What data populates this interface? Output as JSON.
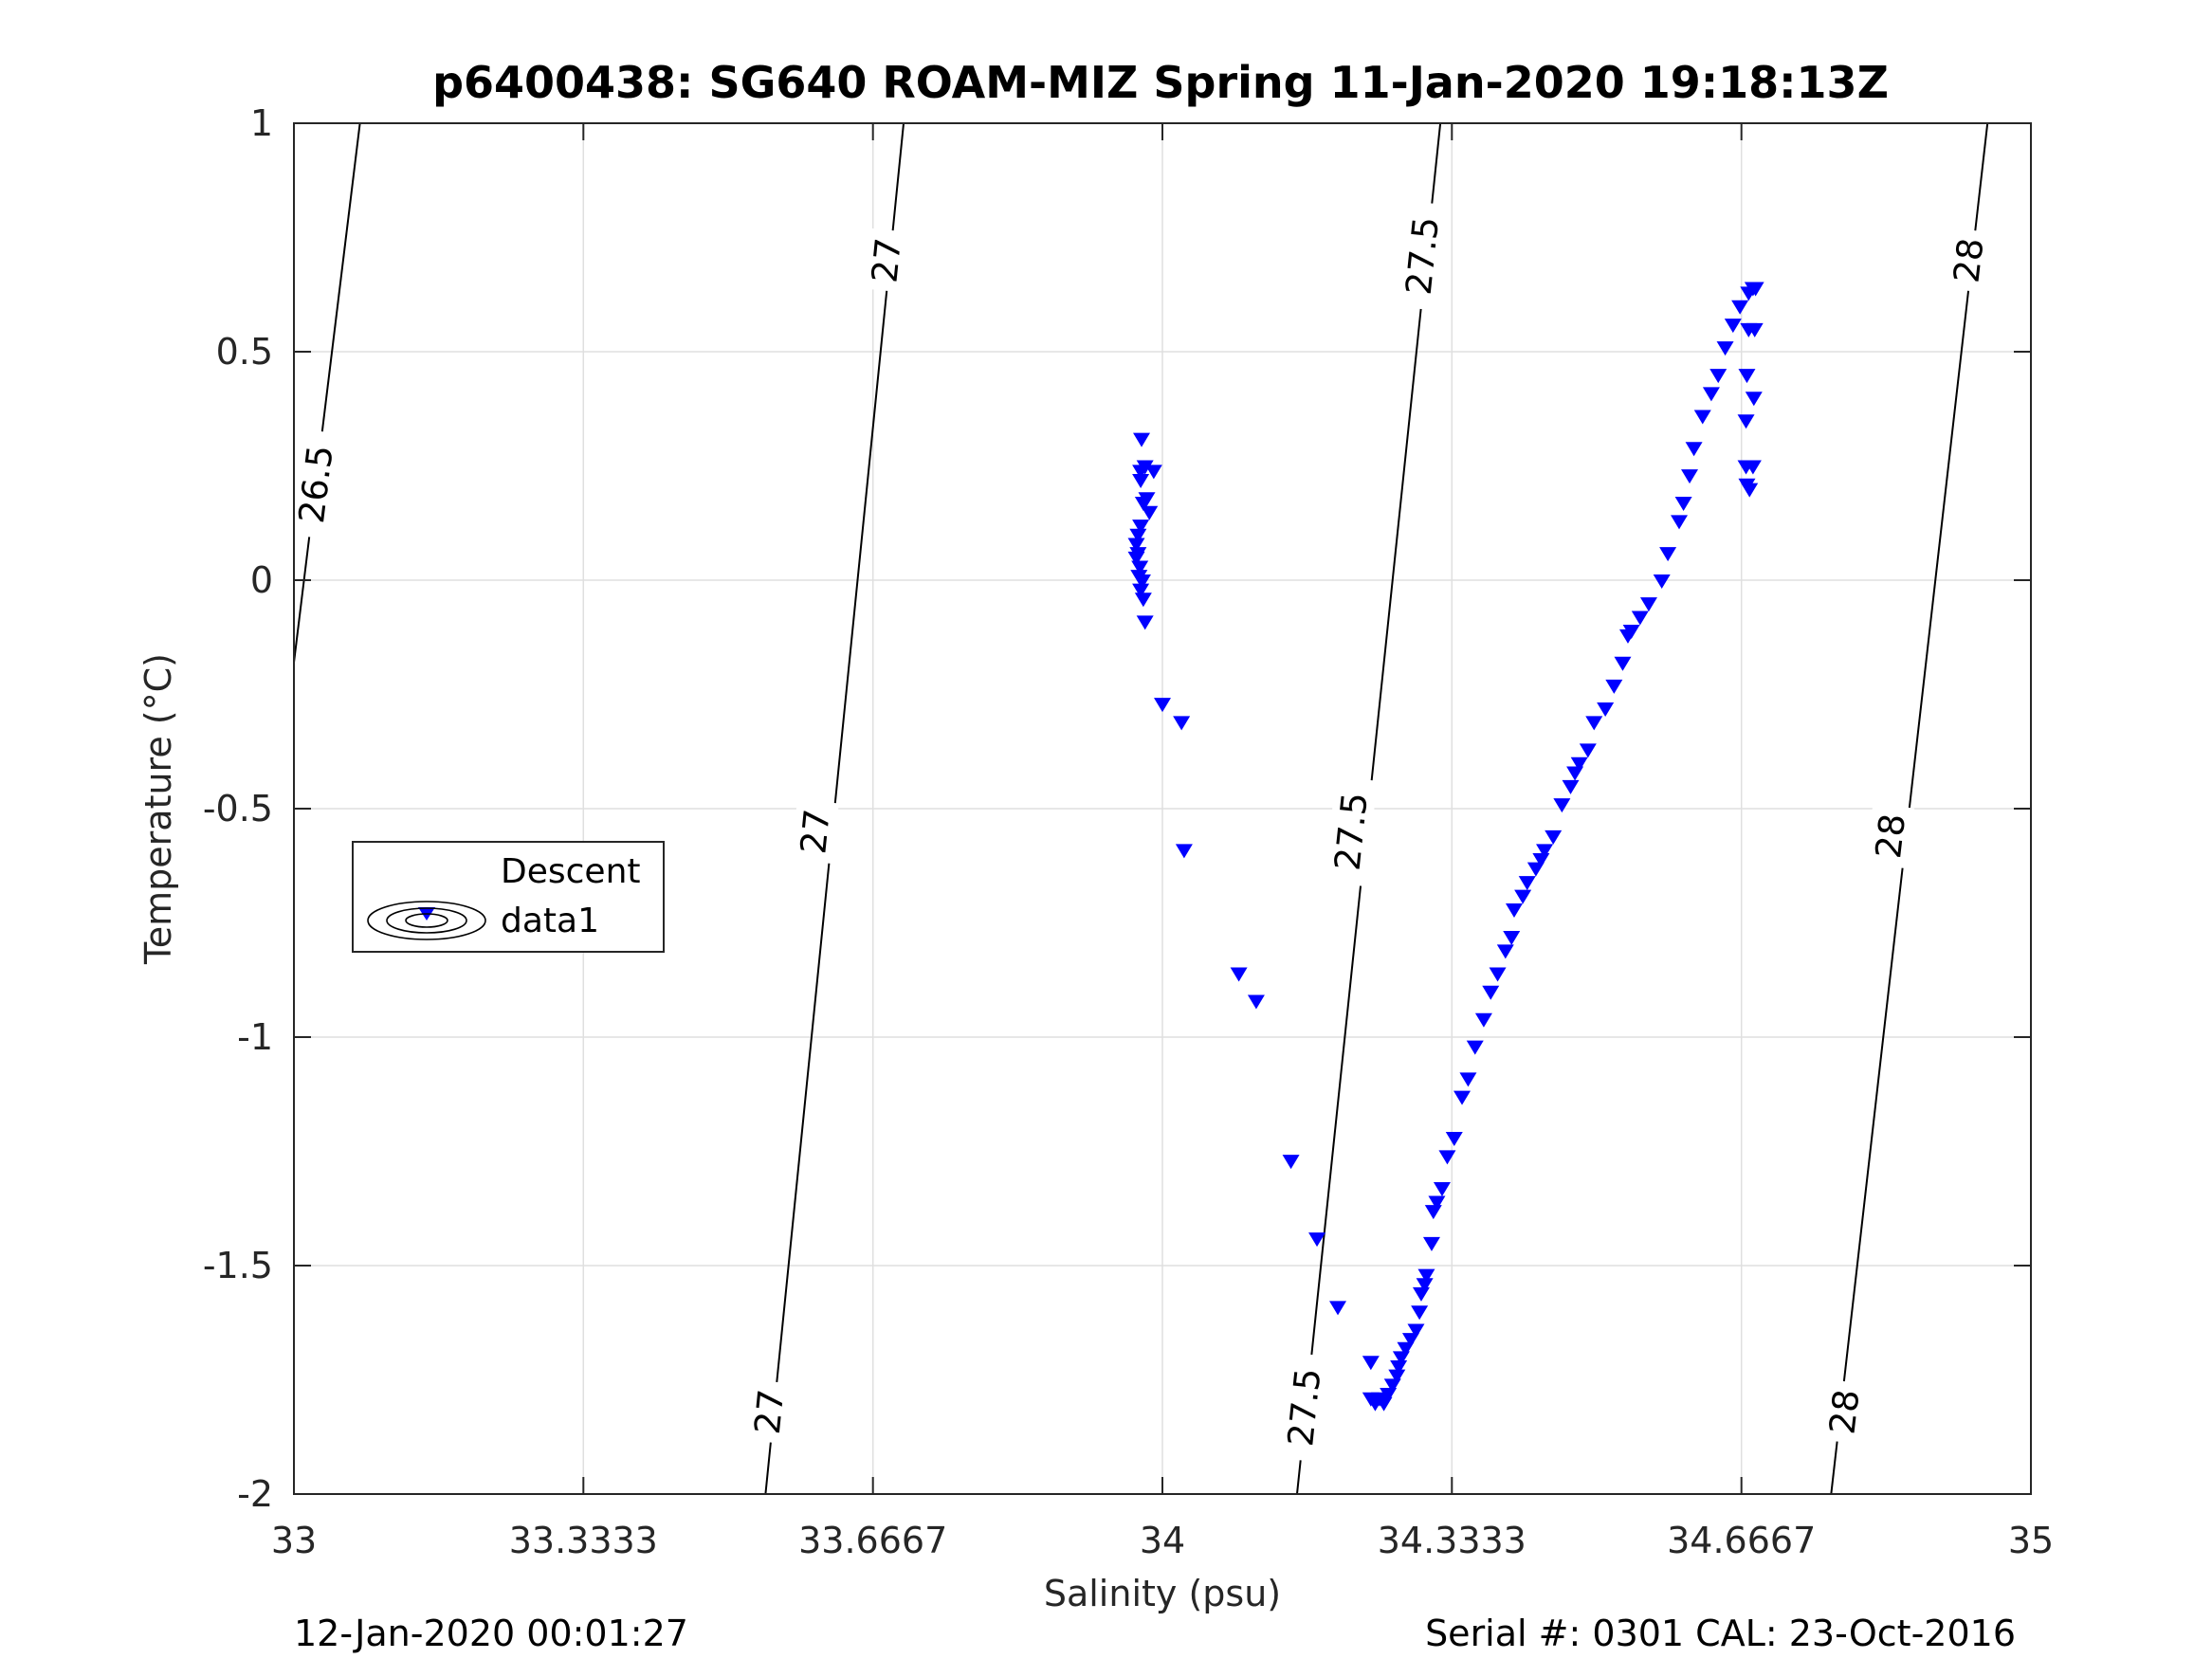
{
  "chart_data": {
    "type": "scatter",
    "title": "p6400438: SG640 ROAM-MIZ Spring 11-Jan-2020 19:18:13Z",
    "xlabel": "Salinity (psu)",
    "ylabel": "Temperature (°C)",
    "xlim": [
      33,
      35
    ],
    "ylim": [
      -2,
      1
    ],
    "x_ticks": [
      33,
      33.3333,
      33.6667,
      34,
      34.3333,
      34.6667,
      35
    ],
    "x_tick_labels": [
      "33",
      "33.3333",
      "33.6667",
      "34",
      "34.3333",
      "34.6667",
      "35"
    ],
    "y_ticks": [
      -2,
      -1.5,
      -1,
      -0.5,
      0,
      0.5,
      1
    ],
    "y_tick_labels": [
      "-2",
      "-1.5",
      "-1",
      "-0.5",
      "0",
      "0.5",
      "1"
    ],
    "grid": true,
    "legend_position": "middle-left",
    "legend": [
      "Descent",
      "data1"
    ],
    "footer_left": "12-Jan-2020 00:01:27",
    "footer_right": "Serial #: 0301  CAL: 23-Oct-2016",
    "marker_color": "#0000ff",
    "series": [
      {
        "name": "Descent",
        "marker": "triangle-down",
        "color": "#0000ff",
        "points": [
          [
            33.976,
            0.31
          ],
          [
            33.98,
            0.25
          ],
          [
            33.975,
            0.24
          ],
          [
            33.99,
            0.24
          ],
          [
            33.975,
            0.22
          ],
          [
            33.982,
            0.18
          ],
          [
            33.978,
            0.17
          ],
          [
            33.985,
            0.15
          ],
          [
            33.975,
            0.12
          ],
          [
            33.972,
            0.1
          ],
          [
            33.97,
            0.08
          ],
          [
            33.972,
            0.06
          ],
          [
            33.97,
            0.05
          ],
          [
            33.974,
            0.03
          ],
          [
            33.973,
            0.01
          ],
          [
            33.977,
            0.0
          ],
          [
            33.975,
            -0.02
          ],
          [
            33.978,
            -0.04
          ],
          [
            33.98,
            -0.09
          ],
          [
            34.0,
            -0.27
          ],
          [
            34.022,
            -0.31
          ],
          [
            34.025,
            -0.59
          ],
          [
            34.088,
            -0.86
          ],
          [
            34.108,
            -0.92
          ],
          [
            34.148,
            -1.27
          ],
          [
            34.178,
            -1.44
          ],
          [
            34.202,
            -1.59
          ],
          [
            34.24,
            -1.71
          ],
          [
            34.24,
            -1.79
          ],
          [
            34.245,
            -1.8
          ],
          [
            34.25,
            -1.79
          ],
          [
            34.255,
            -1.8
          ],
          [
            34.26,
            -1.78
          ],
          [
            34.265,
            -1.76
          ],
          [
            34.27,
            -1.74
          ],
          [
            34.272,
            -1.72
          ],
          [
            34.275,
            -1.7
          ],
          [
            34.28,
            -1.68
          ],
          [
            34.286,
            -1.66
          ],
          [
            34.292,
            -1.64
          ],
          [
            34.296,
            -1.6
          ],
          [
            34.298,
            -1.56
          ],
          [
            34.302,
            -1.54
          ],
          [
            34.304,
            -1.52
          ],
          [
            34.31,
            -1.45
          ],
          [
            34.312,
            -1.38
          ],
          [
            34.316,
            -1.36
          ],
          [
            34.322,
            -1.33
          ],
          [
            34.328,
            -1.26
          ],
          [
            34.336,
            -1.22
          ],
          [
            34.345,
            -1.13
          ],
          [
            34.352,
            -1.09
          ],
          [
            34.36,
            -1.02
          ],
          [
            34.37,
            -0.96
          ],
          [
            34.378,
            -0.9
          ],
          [
            34.386,
            -0.86
          ],
          [
            34.395,
            -0.81
          ],
          [
            34.402,
            -0.78
          ],
          [
            34.405,
            -0.72
          ],
          [
            34.415,
            -0.69
          ],
          [
            34.42,
            -0.66
          ],
          [
            34.43,
            -0.63
          ],
          [
            34.436,
            -0.61
          ],
          [
            34.44,
            -0.59
          ],
          [
            34.45,
            -0.56
          ],
          [
            34.46,
            -0.49
          ],
          [
            34.47,
            -0.45
          ],
          [
            34.475,
            -0.42
          ],
          [
            34.48,
            -0.4
          ],
          [
            34.49,
            -0.37
          ],
          [
            34.497,
            -0.31
          ],
          [
            34.51,
            -0.28
          ],
          [
            34.52,
            -0.23
          ],
          [
            34.53,
            -0.18
          ],
          [
            34.536,
            -0.12
          ],
          [
            34.54,
            -0.11
          ],
          [
            34.55,
            -0.08
          ],
          [
            34.56,
            -0.05
          ],
          [
            34.575,
            0.0
          ],
          [
            34.582,
            0.06
          ],
          [
            34.595,
            0.13
          ],
          [
            34.6,
            0.17
          ],
          [
            34.607,
            0.23
          ],
          [
            34.612,
            0.29
          ],
          [
            34.622,
            0.36
          ],
          [
            34.632,
            0.41
          ],
          [
            34.64,
            0.45
          ],
          [
            34.648,
            0.51
          ],
          [
            34.657,
            0.56
          ],
          [
            34.665,
            0.6
          ],
          [
            34.675,
            0.63
          ],
          [
            34.68,
            0.64
          ],
          [
            34.675,
            0.55
          ],
          [
            34.673,
            0.45
          ],
          [
            34.672,
            0.35
          ],
          [
            34.672,
            0.25
          ],
          [
            34.673,
            0.21
          ],
          [
            34.676,
            0.2
          ],
          [
            34.68,
            0.25
          ],
          [
            34.681,
            0.4
          ],
          [
            34.682,
            0.55
          ],
          [
            34.683,
            0.64
          ]
        ]
      },
      {
        "name": "data1",
        "type": "contour",
        "color": "#000000",
        "levels": [
          26.5,
          27,
          27.5,
          28
        ],
        "lines": [
          {
            "level": 26.5,
            "x": [
              33.0,
              33.076
            ],
            "y": [
              -0.18,
              1.0
            ]
          },
          {
            "level": 27,
            "x": [
              33.543,
              33.702
            ],
            "y": [
              -2.0,
              1.0
            ]
          },
          {
            "level": 27.5,
            "x": [
              34.155,
              34.32
            ],
            "y": [
              -2.0,
              1.0
            ]
          },
          {
            "level": 28,
            "x": [
              34.77,
              34.95
            ],
            "y": [
              -2.0,
              1.0
            ]
          }
        ],
        "labels": [
          {
            "text": "26.5",
            "x": 33.025,
            "y": 0.21
          },
          {
            "text": "27",
            "x": 33.6,
            "y": -0.55
          },
          {
            "text": "27",
            "x": 33.547,
            "y": -1.82
          },
          {
            "text": "27",
            "x": 33.682,
            "y": 0.7
          },
          {
            "text": "27.5",
            "x": 34.217,
            "y": -0.55
          },
          {
            "text": "27.5",
            "x": 34.163,
            "y": -1.81
          },
          {
            "text": "27.5",
            "x": 34.299,
            "y": 0.71
          },
          {
            "text": "28",
            "x": 34.838,
            "y": -0.56
          },
          {
            "text": "28",
            "x": 34.785,
            "y": -1.82
          },
          {
            "text": "28",
            "x": 34.928,
            "y": 0.7
          }
        ]
      }
    ]
  }
}
